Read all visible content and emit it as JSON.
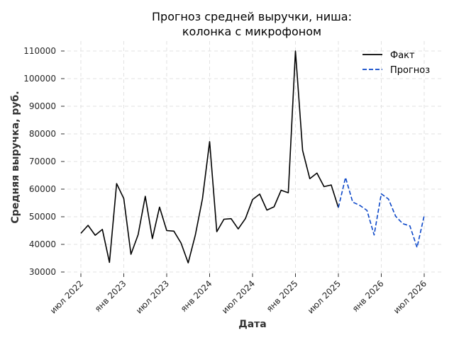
{
  "chart_data": {
    "type": "line",
    "title_lines": [
      "Прогноз средней выручки, ниша:",
      "колонка с микрофоном"
    ],
    "xlabel": "Дата",
    "ylabel": "Средняя выручка, руб.",
    "ylim": [
      30000,
      110000
    ],
    "yticks": [
      30000,
      40000,
      50000,
      60000,
      70000,
      80000,
      90000,
      100000,
      110000
    ],
    "xticks": [
      {
        "date": "2022-07",
        "label": "июл 2022"
      },
      {
        "date": "2023-01",
        "label": "янв 2023"
      },
      {
        "date": "2023-07",
        "label": "июл 2023"
      },
      {
        "date": "2024-01",
        "label": "янв 2024"
      },
      {
        "date": "2024-07",
        "label": "июл 2024"
      },
      {
        "date": "2025-01",
        "label": "янв 2025"
      },
      {
        "date": "2025-07",
        "label": "июл 2025"
      },
      {
        "date": "2026-01",
        "label": "янв 2026"
      },
      {
        "date": "2026-07",
        "label": "июл 2026"
      }
    ],
    "xlim": [
      "2022-05",
      "2026-07"
    ],
    "grid": true,
    "legend_position": "top-right",
    "series": [
      {
        "name": "Факт",
        "color": "#000000",
        "style": "solid",
        "x": [
          "2022-07",
          "2022-08",
          "2022-09",
          "2022-10",
          "2022-11",
          "2022-12",
          "2023-01",
          "2023-02",
          "2023-03",
          "2023-04",
          "2023-05",
          "2023-06",
          "2023-07",
          "2023-08",
          "2023-09",
          "2023-10",
          "2023-11",
          "2023-12",
          "2024-01",
          "2024-02",
          "2024-03",
          "2024-04",
          "2024-05",
          "2024-06",
          "2024-07",
          "2024-08",
          "2024-09",
          "2024-10",
          "2024-11",
          "2024-12",
          "2025-01",
          "2025-02",
          "2025-03",
          "2025-04",
          "2025-05",
          "2025-06",
          "2025-07"
        ],
        "values": [
          44000,
          46900,
          43300,
          45400,
          33500,
          62000,
          56600,
          36400,
          43500,
          57400,
          42100,
          53500,
          45000,
          44800,
          40500,
          33300,
          43300,
          56500,
          77200,
          44600,
          49100,
          49300,
          45600,
          49300,
          56200,
          58200,
          52400,
          53600,
          59600,
          58700,
          110000,
          74000,
          63800,
          65800,
          60900,
          61500,
          53300
        ]
      },
      {
        "name": "Прогноз",
        "color": "#0a46c8",
        "style": "dashed",
        "x": [
          "2025-07",
          "2025-08",
          "2025-09",
          "2025-10",
          "2025-11",
          "2025-12",
          "2026-01",
          "2026-02",
          "2026-03",
          "2026-04",
          "2026-05",
          "2026-06",
          "2026-07"
        ],
        "values": [
          53300,
          64200,
          55300,
          54100,
          52300,
          43400,
          58300,
          56400,
          50200,
          47500,
          46700,
          38900,
          50400
        ]
      }
    ]
  }
}
